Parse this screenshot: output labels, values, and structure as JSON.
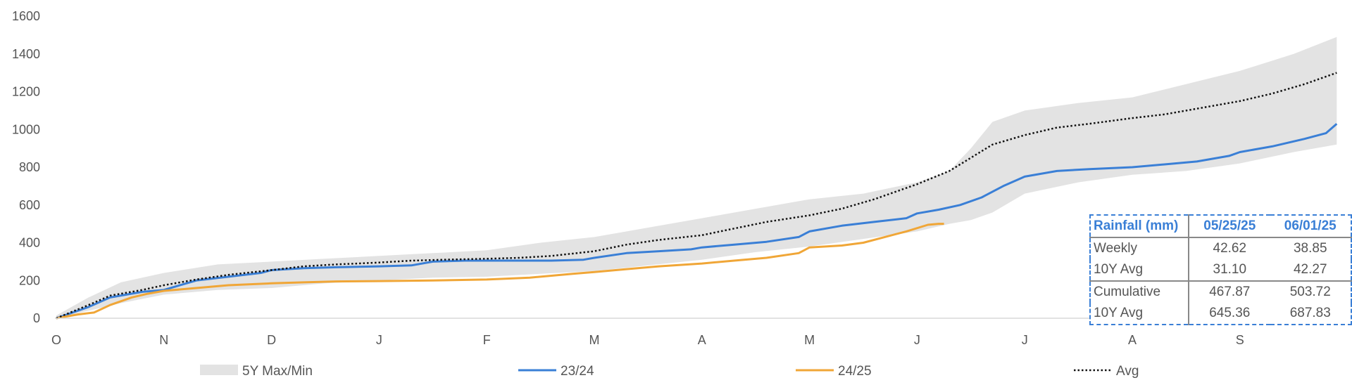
{
  "chart_data": {
    "type": "line",
    "title": "",
    "xlabel": "",
    "ylabel": "",
    "ylim": [
      0,
      1600
    ],
    "yticks": [
      0,
      200,
      400,
      600,
      800,
      1000,
      1200,
      1400,
      1600
    ],
    "categories": [
      "O",
      "N",
      "D",
      "J",
      "F",
      "M",
      "A",
      "M",
      "J",
      "J",
      "A",
      "S"
    ],
    "grid": false,
    "legend_position": "bottom",
    "series": [
      {
        "name": "5Y Max/Min",
        "kind": "band",
        "color": "#e3e3e3",
        "x": [
          0,
          0.3,
          0.6,
          1.0,
          1.5,
          2.0,
          2.5,
          3.0,
          3.5,
          4.0,
          4.5,
          5.0,
          5.5,
          6.0,
          6.5,
          7.0,
          7.5,
          8.0,
          8.3,
          8.5,
          8.7,
          9.0,
          9.5,
          10.0,
          10.5,
          11.0,
          11.5,
          11.9
        ],
        "upper": [
          15,
          110,
          190,
          240,
          285,
          300,
          315,
          330,
          345,
          360,
          400,
          430,
          480,
          530,
          580,
          630,
          660,
          720,
          780,
          900,
          1040,
          1100,
          1140,
          1170,
          1240,
          1310,
          1400,
          1490
        ],
        "lower": [
          0,
          40,
          80,
          125,
          150,
          160,
          185,
          200,
          215,
          220,
          235,
          250,
          280,
          310,
          350,
          380,
          420,
          460,
          500,
          520,
          560,
          660,
          720,
          760,
          780,
          820,
          880,
          920
        ]
      },
      {
        "name": "23/24",
        "kind": "line",
        "color": "#3a7fd6",
        "x": [
          0,
          0.3,
          0.5,
          0.8,
          1.0,
          1.3,
          1.6,
          1.9,
          2.0,
          2.3,
          2.6,
          3.0,
          3.3,
          3.5,
          3.8,
          4.0,
          4.3,
          4.6,
          4.9,
          5.0,
          5.3,
          5.6,
          5.9,
          6.0,
          6.3,
          6.6,
          6.9,
          7.0,
          7.3,
          7.6,
          7.9,
          8.0,
          8.2,
          8.4,
          8.6,
          8.8,
          9.0,
          9.3,
          9.6,
          10.0,
          10.3,
          10.6,
          10.9,
          11.0,
          11.3,
          11.6,
          11.8,
          11.9
        ],
        "y": [
          0,
          60,
          110,
          140,
          150,
          200,
          220,
          240,
          255,
          265,
          270,
          275,
          280,
          300,
          305,
          305,
          305,
          305,
          310,
          320,
          345,
          355,
          365,
          375,
          390,
          405,
          430,
          460,
          490,
          510,
          530,
          555,
          575,
          600,
          640,
          700,
          750,
          780,
          790,
          800,
          815,
          830,
          860,
          880,
          910,
          950,
          980,
          1030
        ]
      },
      {
        "name": "24/25",
        "kind": "line",
        "color": "#f0a637",
        "x": [
          0,
          0.2,
          0.35,
          0.5,
          0.7,
          0.85,
          1.0,
          1.3,
          1.6,
          2.0,
          2.3,
          2.6,
          3.0,
          3.5,
          4.0,
          4.4,
          4.6,
          4.8,
          4.9,
          5.0,
          5.3,
          5.6,
          6.0,
          6.3,
          6.6,
          6.9,
          7.0,
          7.3,
          7.5,
          7.7,
          7.9,
          8.1,
          8.2,
          8.25
        ],
        "y": [
          0,
          20,
          30,
          70,
          110,
          130,
          145,
          160,
          175,
          185,
          190,
          195,
          197,
          200,
          205,
          215,
          225,
          235,
          240,
          245,
          260,
          275,
          290,
          305,
          320,
          345,
          375,
          385,
          400,
          430,
          460,
          495,
          500,
          500
        ]
      },
      {
        "name": "Avg",
        "kind": "dotted",
        "color": "#111111",
        "x": [
          0,
          0.3,
          0.5,
          0.8,
          1.0,
          1.3,
          1.6,
          2.0,
          2.3,
          2.6,
          3.0,
          3.3,
          3.6,
          4.0,
          4.3,
          4.6,
          5.0,
          5.3,
          5.6,
          6.0,
          6.3,
          6.6,
          7.0,
          7.3,
          7.6,
          8.0,
          8.3,
          8.5,
          8.7,
          9.0,
          9.3,
          9.6,
          10.0,
          10.3,
          10.6,
          11.0,
          11.3,
          11.6,
          11.9
        ],
        "y": [
          0,
          70,
          120,
          150,
          175,
          205,
          230,
          255,
          275,
          285,
          295,
          305,
          310,
          315,
          320,
          330,
          355,
          390,
          415,
          440,
          475,
          510,
          545,
          580,
          630,
          710,
          780,
          850,
          920,
          970,
          1010,
          1030,
          1060,
          1080,
          1110,
          1150,
          1190,
          1240,
          1300
        ]
      }
    ]
  },
  "legend": [
    {
      "label": "5Y Max/Min",
      "swatch": "band",
      "color": "#e3e3e3"
    },
    {
      "label": "23/24",
      "swatch": "line",
      "color": "#3a7fd6"
    },
    {
      "label": "24/25",
      "swatch": "line",
      "color": "#f0a637"
    },
    {
      "label": "Avg",
      "swatch": "dotted",
      "color": "#111111"
    }
  ],
  "table": {
    "header": [
      "Rainfall (mm)",
      "05/25/25",
      "06/01/25"
    ],
    "rows": [
      [
        "Weekly",
        "42.62",
        "38.85"
      ],
      [
        "10Y Avg",
        "31.10",
        "42.27"
      ],
      [
        "Cumulative",
        "467.87",
        "503.72"
      ],
      [
        "10Y Avg",
        "645.36",
        "687.83"
      ]
    ]
  },
  "colors": {
    "accent": "#3a7fd6",
    "axis": "#d9d9d9",
    "text": "#555555"
  }
}
